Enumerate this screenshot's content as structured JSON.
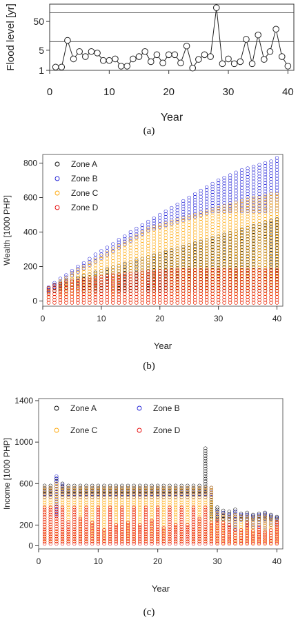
{
  "captions": {
    "a": "(a)",
    "b": "(b)",
    "c": "(c)"
  },
  "chart_data": [
    {
      "id": "a",
      "type": "line",
      "ylabel": "Flood level [yr]",
      "xlabel": "Year",
      "y_scale": "log",
      "xlim": [
        0,
        41
      ],
      "ylim": [
        1,
        200
      ],
      "x_ticks": [
        0,
        10,
        20,
        30,
        40
      ],
      "y_ticks": [
        1,
        5,
        50
      ],
      "reference_lines": [
        1,
        10,
        100
      ],
      "grid": false,
      "series": [
        {
          "x": [
            1,
            2,
            3,
            4,
            5,
            6,
            7,
            8,
            9,
            10,
            11,
            12,
            13,
            14,
            15,
            16,
            17,
            18,
            19,
            20,
            21,
            22,
            23,
            24,
            25,
            26,
            27,
            28,
            29,
            30,
            31,
            32,
            33,
            34,
            35,
            36,
            37,
            38,
            39,
            40
          ],
          "values": [
            1.3,
            1.3,
            11,
            2.5,
            4.5,
            3,
            4.5,
            4,
            2.2,
            2.2,
            2.5,
            1.4,
            1.4,
            2.5,
            3,
            4.5,
            2,
            3.5,
            1.8,
            3.5,
            3.5,
            1.8,
            7,
            1.2,
            2.4,
            3.5,
            3,
            150,
            1.7,
            2.5,
            1.7,
            2,
            12,
            1.7,
            17,
            2.4,
            4.5,
            27,
            3,
            1.4
          ]
        }
      ]
    },
    {
      "id": "b",
      "type": "scatter",
      "ylabel": "Wealth [1000 PHP]",
      "xlabel": "Year",
      "xlim": [
        0,
        41
      ],
      "ylim": [
        -30,
        850
      ],
      "x_ticks": [
        0,
        10,
        20,
        30,
        40
      ],
      "y_ticks": [
        0,
        200,
        400,
        600,
        800
      ],
      "legend_position": "top-left",
      "series": [
        {
          "name": "Zone A",
          "color": "#000000",
          "low": [
            55,
            60,
            60,
            60,
            60,
            60,
            60,
            60,
            60,
            60,
            60,
            60,
            60,
            60,
            60,
            60,
            60,
            60,
            60,
            60,
            60,
            60,
            60,
            60,
            60,
            60,
            60,
            60,
            60,
            60,
            60,
            60,
            60,
            60,
            60,
            60,
            60,
            60,
            60,
            60
          ],
          "high": [
            75,
            95,
            105,
            115,
            125,
            135,
            145,
            155,
            165,
            175,
            185,
            195,
            205,
            215,
            225,
            235,
            245,
            255,
            265,
            275,
            285,
            295,
            305,
            315,
            325,
            335,
            345,
            355,
            365,
            375,
            385,
            395,
            405,
            415,
            425,
            435,
            445,
            455,
            465,
            475
          ]
        },
        {
          "name": "Zone B",
          "color": "#1f1fd6",
          "low": [
            50,
            80,
            100,
            125,
            150,
            170,
            190,
            210,
            230,
            250,
            270,
            290,
            310,
            330,
            350,
            370,
            390,
            410,
            420,
            430,
            440,
            450,
            460,
            470,
            480,
            490,
            500,
            510,
            520,
            520,
            520,
            520,
            520,
            520,
            520,
            520,
            520,
            520,
            520,
            520
          ],
          "high": [
            80,
            105,
            130,
            150,
            175,
            200,
            220,
            245,
            270,
            290,
            310,
            330,
            355,
            375,
            400,
            420,
            440,
            460,
            480,
            500,
            520,
            540,
            560,
            580,
            600,
            620,
            640,
            660,
            680,
            700,
            715,
            730,
            745,
            760,
            770,
            780,
            790,
            800,
            810,
            830
          ]
        },
        {
          "name": "Zone C",
          "color": "#ffa500",
          "low": [
            -10,
            -10,
            -10,
            -10,
            -10,
            -10,
            -10,
            -10,
            -10,
            -10,
            -10,
            -10,
            -10,
            -10,
            -10,
            -10,
            -10,
            -10,
            -10,
            -10,
            -10,
            -10,
            -10,
            -10,
            -10,
            -10,
            -10,
            -10,
            -10,
            -10,
            -10,
            -10,
            -10,
            -10,
            -10,
            -10,
            -10,
            -10,
            -10,
            -10
          ],
          "high": [
            70,
            90,
            115,
            135,
            160,
            180,
            200,
            220,
            240,
            260,
            280,
            300,
            320,
            340,
            360,
            380,
            400,
            420,
            430,
            440,
            450,
            460,
            470,
            480,
            490,
            500,
            510,
            520,
            530,
            540,
            550,
            560,
            570,
            580,
            590,
            600,
            600,
            610,
            620,
            620
          ]
        },
        {
          "name": "Zone D",
          "color": "#e60000",
          "low": [
            -10,
            -10,
            -10,
            -10,
            -10,
            -10,
            -10,
            -10,
            -10,
            -10,
            -10,
            -10,
            -10,
            -10,
            -10,
            -10,
            -10,
            -10,
            -10,
            -10,
            -10,
            -10,
            -10,
            -10,
            -10,
            -10,
            -10,
            -10,
            -10,
            -10,
            -10,
            -10,
            -10,
            -10,
            -10,
            -10,
            -10,
            -10,
            -10,
            -10
          ],
          "high": [
            75,
            90,
            100,
            110,
            115,
            120,
            125,
            130,
            135,
            140,
            145,
            150,
            150,
            155,
            160,
            160,
            165,
            170,
            170,
            175,
            175,
            180,
            180,
            180,
            180,
            180,
            180,
            180,
            180,
            180,
            180,
            180,
            180,
            180,
            180,
            180,
            180,
            180,
            180,
            180
          ]
        }
      ]
    },
    {
      "id": "c",
      "type": "scatter",
      "ylabel": "Income [1000 PHP]",
      "xlabel": "Year",
      "xlim": [
        0,
        41
      ],
      "ylim": [
        -30,
        1420
      ],
      "x_ticks": [
        0,
        10,
        20,
        30,
        40
      ],
      "y_ticks": [
        0,
        200,
        600,
        1000,
        1400
      ],
      "legend_position": "top",
      "series": [
        {
          "name": "Zone A",
          "color": "#000000",
          "low": [
            500,
            500,
            500,
            500,
            500,
            500,
            500,
            500,
            500,
            500,
            500,
            500,
            500,
            500,
            500,
            500,
            500,
            500,
            500,
            500,
            500,
            500,
            500,
            500,
            500,
            500,
            500,
            500,
            260,
            260,
            260,
            260,
            260,
            260,
            260,
            260,
            260,
            260,
            260,
            260
          ],
          "high": [
            580,
            580,
            650,
            600,
            580,
            580,
            580,
            580,
            580,
            580,
            580,
            580,
            580,
            580,
            580,
            580,
            580,
            580,
            580,
            580,
            580,
            580,
            580,
            580,
            580,
            580,
            580,
            940,
            560,
            370,
            340,
            330,
            350,
            310,
            320,
            300,
            310,
            320,
            300,
            280
          ]
        },
        {
          "name": "Zone B",
          "color": "#1f1fd6",
          "low": [
            470,
            470,
            300,
            470,
            470,
            470,
            470,
            470,
            470,
            470,
            470,
            470,
            470,
            470,
            470,
            470,
            470,
            470,
            470,
            470,
            470,
            470,
            470,
            470,
            470,
            470,
            470,
            470,
            470,
            250,
            250,
            180,
            160,
            250,
            200,
            180,
            200,
            150,
            200,
            200
          ],
          "high": [
            560,
            560,
            670,
            590,
            560,
            560,
            560,
            560,
            560,
            560,
            560,
            560,
            560,
            560,
            560,
            560,
            560,
            560,
            560,
            560,
            560,
            560,
            560,
            560,
            560,
            560,
            560,
            560,
            560,
            330,
            320,
            300,
            330,
            300,
            300,
            290,
            300,
            310,
            290,
            270
          ]
        },
        {
          "name": "Zone C",
          "color": "#ffa500",
          "low": [
            40,
            40,
            40,
            40,
            40,
            40,
            40,
            40,
            40,
            40,
            40,
            40,
            40,
            40,
            40,
            40,
            40,
            40,
            40,
            40,
            40,
            40,
            40,
            40,
            40,
            40,
            40,
            40,
            40,
            30,
            30,
            30,
            30,
            30,
            30,
            30,
            30,
            30,
            30,
            30
          ],
          "high": [
            560,
            560,
            600,
            560,
            560,
            560,
            560,
            560,
            560,
            560,
            560,
            560,
            560,
            560,
            560,
            560,
            560,
            560,
            560,
            560,
            560,
            560,
            560,
            560,
            560,
            560,
            560,
            560,
            560,
            320,
            300,
            280,
            300,
            280,
            280,
            270,
            280,
            290,
            270,
            250
          ]
        },
        {
          "name": "Zone D",
          "color": "#e60000",
          "low": [
            20,
            20,
            20,
            20,
            20,
            20,
            20,
            20,
            20,
            20,
            20,
            20,
            20,
            20,
            20,
            20,
            20,
            20,
            20,
            20,
            20,
            20,
            20,
            20,
            20,
            20,
            20,
            20,
            20,
            20,
            20,
            20,
            20,
            20,
            20,
            20,
            20,
            20,
            20,
            20
          ],
          "high": [
            370,
            370,
            380,
            370,
            230,
            370,
            260,
            370,
            220,
            370,
            150,
            370,
            200,
            370,
            220,
            370,
            200,
            370,
            240,
            370,
            170,
            370,
            200,
            370,
            200,
            370,
            260,
            370,
            220,
            240,
            220,
            200,
            150,
            150,
            220,
            140,
            180,
            130,
            150,
            230
          ]
        }
      ]
    }
  ]
}
